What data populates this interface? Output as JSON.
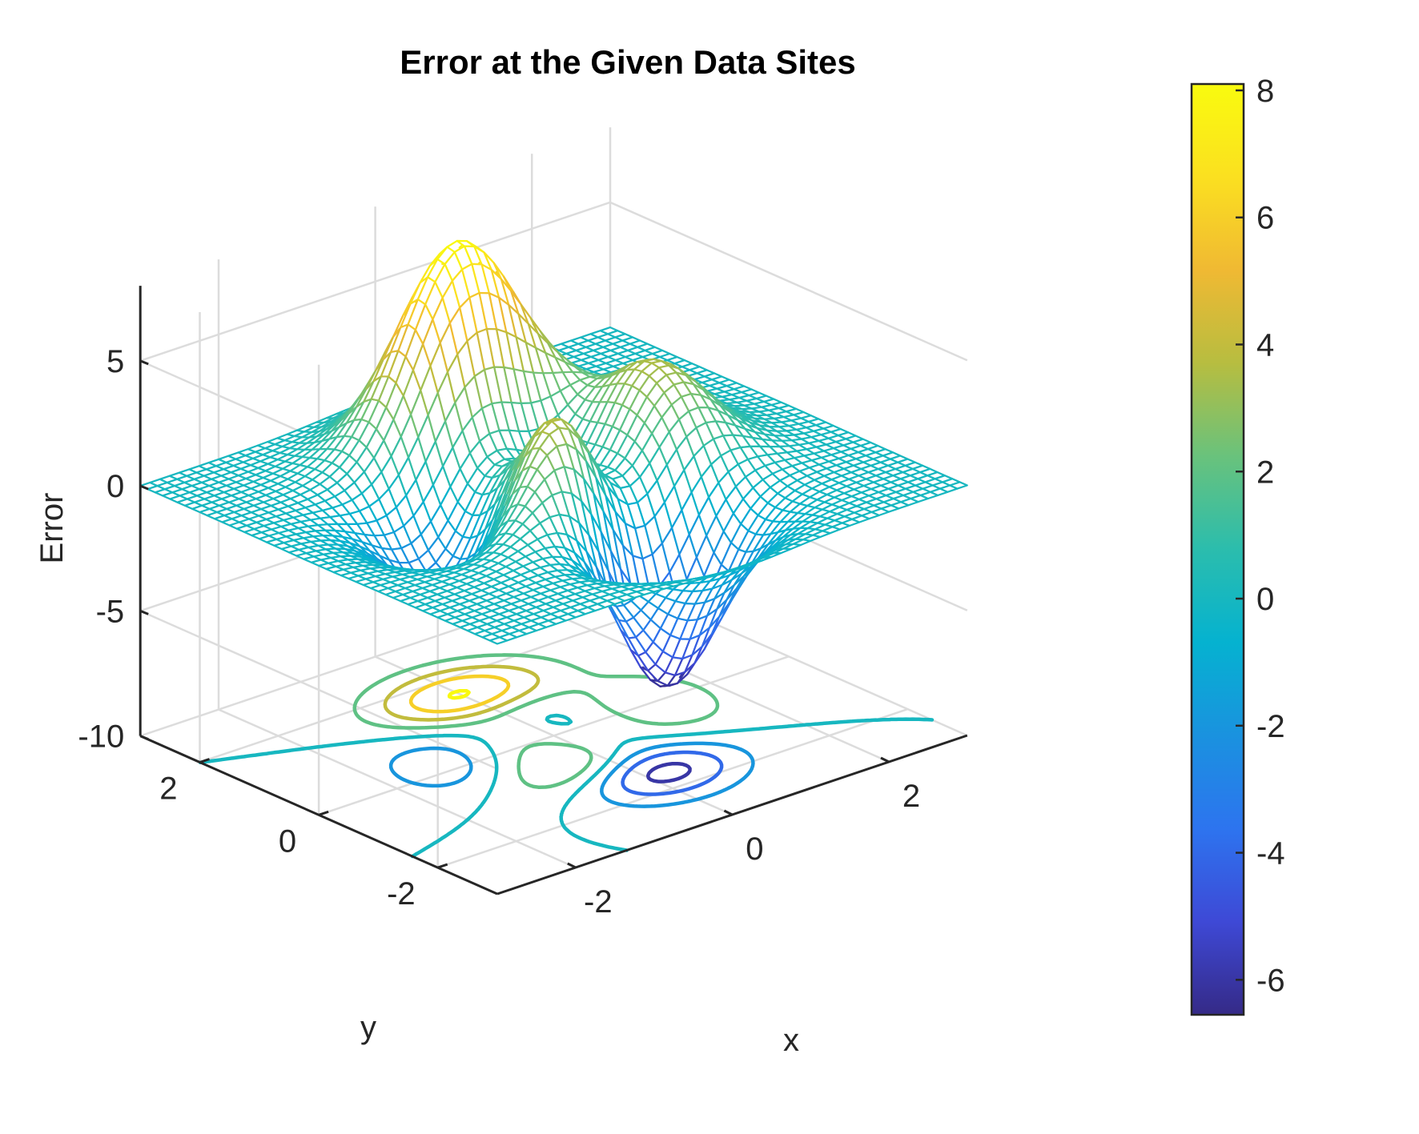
{
  "chart_data": {
    "type": "surface",
    "title": "Error at the Given Data Sites",
    "xlabel": "x",
    "ylabel": "y",
    "zlabel": "Error",
    "xlim": [
      -3,
      3
    ],
    "ylim": [
      -3,
      3
    ],
    "zlim": [
      -10,
      8
    ],
    "x_ticks": [
      -2,
      0,
      2
    ],
    "y_ticks": [
      -2,
      0,
      2
    ],
    "z_ticks": [
      -10,
      -5,
      0,
      5
    ],
    "z_tick_labels": [
      "-10",
      "-5",
      "0",
      "5"
    ],
    "x_tick_labels": [
      "-2",
      "0",
      "2"
    ],
    "y_tick_labels": [
      "-2",
      "0",
      "2"
    ],
    "grid": true,
    "mesh_resolution": 49,
    "surface_function": "peaks",
    "contour_plane_z": -10,
    "contour_levels": [
      -6,
      -4,
      -2,
      0,
      2,
      4,
      6,
      8
    ],
    "colormap": "parula",
    "colorbar": {
      "ticks": [
        -6,
        -4,
        -2,
        0,
        2,
        4,
        6,
        8
      ],
      "tick_labels": [
        "-6",
        "-4",
        "-2",
        "0",
        "2",
        "4",
        "6",
        "8"
      ],
      "range": [
        -6.55,
        8.1
      ],
      "placement": "right"
    },
    "colors": {
      "parula": [
        "#352a87",
        "#3e49d6",
        "#2d74ef",
        "#1a92df",
        "#05b2d0",
        "#2bbdad",
        "#69c27c",
        "#b7bd40",
        "#f0b933",
        "#fbe020",
        "#f9fb0e"
      ],
      "axis": "#262626",
      "grid": "#dcdcdc"
    }
  }
}
